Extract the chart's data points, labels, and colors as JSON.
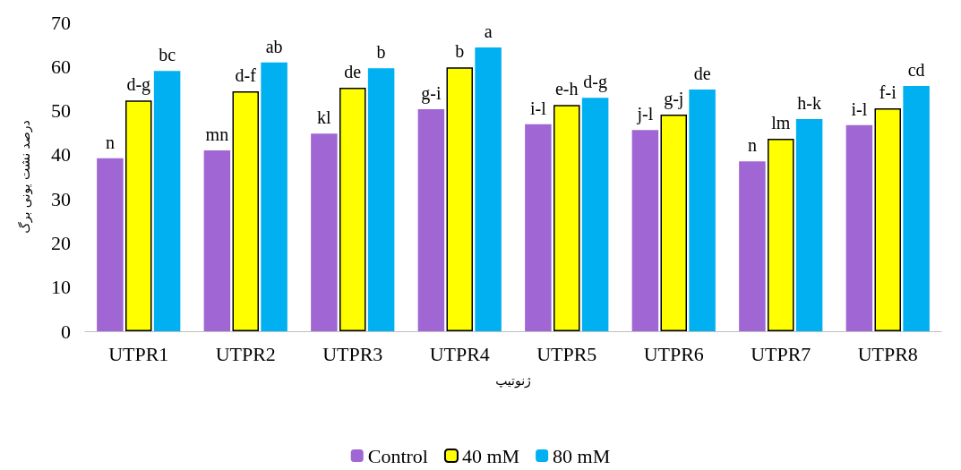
{
  "chart_data": {
    "type": "bar",
    "xlabel": "ژنوتیپ",
    "ylabel": "درصد نشت یونی برگ",
    "categories": [
      "UTPR1",
      "UTPR2",
      "UTPR3",
      "UTPR4",
      "UTPR5",
      "UTPR6",
      "UTPR7",
      "UTPR8"
    ],
    "series": [
      {
        "name": "Control",
        "color": "#a066d3",
        "values": [
          39.2,
          41.0,
          44.8,
          50.3,
          46.9,
          45.6,
          38.5,
          46.7
        ],
        "value_labels": [
          "n",
          "mn",
          "kl",
          "g-i",
          "i-l",
          "j-l",
          "n",
          "i-l"
        ]
      },
      {
        "name": "40 mM",
        "color": "#ffff00",
        "values": [
          52.3,
          54.4,
          55.2,
          59.8,
          51.3,
          49.1,
          43.6,
          50.5
        ],
        "value_labels": [
          "d-g",
          "d-f",
          "de",
          "b",
          "e-h",
          "g-j",
          "lm",
          "f-i"
        ]
      },
      {
        "name": "80 mM",
        "color": "#00b0f0",
        "values": [
          59.0,
          60.9,
          59.6,
          64.3,
          52.9,
          54.8,
          48.1,
          55.6
        ],
        "value_labels": [
          "bc",
          "ab",
          "b",
          "a",
          "d-g",
          "de",
          "h-k",
          "cd"
        ]
      }
    ],
    "ylim": [
      0,
      70
    ],
    "yticks": [
      0,
      10,
      20,
      30,
      40,
      50,
      60,
      70
    ],
    "grid": false,
    "legend": "bottom"
  }
}
